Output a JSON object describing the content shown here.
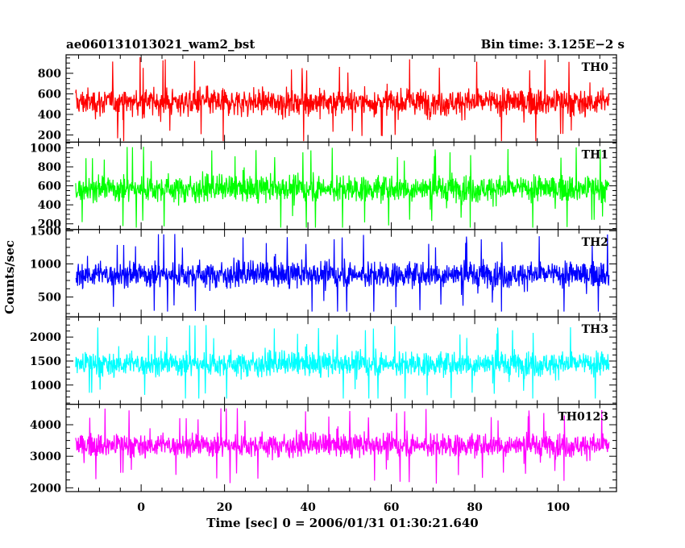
{
  "chart_data": {
    "type": "line",
    "title": "ae060131013021_wam2_bst",
    "subtitle": "Bin time: 3.125E−2 s",
    "xlabel": "Time [sec] 0 = 2006/01/31 01:30:21.640",
    "ylabel": "Counts/sec",
    "xlim": [
      -18,
      114
    ],
    "x_range": [
      -15.7,
      112.2
    ],
    "xticks": [
      0,
      20,
      40,
      60,
      80,
      100
    ],
    "xtick_labels": [
      "0",
      "20",
      "40",
      "60",
      "80",
      "100"
    ],
    "grid": false,
    "panels": [
      {
        "name": "TH0",
        "color": "#ff0000",
        "ylim": [
          130,
          980
        ],
        "yticks": [
          200,
          400,
          600,
          800
        ],
        "ytick_labels": [
          "200",
          "400",
          "600",
          "800"
        ],
        "mean": 520,
        "spread": 170,
        "min": 140,
        "max": 980
      },
      {
        "name": "TH1",
        "color": "#00ff00",
        "ylim": [
          140,
          1060
        ],
        "yticks": [
          200,
          400,
          600,
          800,
          1000
        ],
        "ytick_labels": [
          "200",
          "400",
          "600",
          "800",
          "1000"
        ],
        "mean": 570,
        "spread": 180,
        "min": 160,
        "max": 1040
      },
      {
        "name": "TH2",
        "color": "#0000ff",
        "ylim": [
          200,
          1520
        ],
        "yticks": [
          500,
          1000,
          1500
        ],
        "ytick_labels": [
          "500",
          "1000",
          "1500"
        ],
        "mean": 840,
        "spread": 250,
        "min": 280,
        "max": 1500
      },
      {
        "name": "TH3",
        "color": "#00ffff",
        "ylim": [
          600,
          2420
        ],
        "yticks": [
          1000,
          1500,
          2000
        ],
        "ytick_labels": [
          "1000",
          "1500",
          "2000"
        ],
        "mean": 1440,
        "spread": 330,
        "min": 720,
        "max": 2350
      },
      {
        "name": "TH0123",
        "color": "#ff00ff",
        "ylim": [
          1880,
          4650
        ],
        "yticks": [
          2000,
          3000,
          4000
        ],
        "ytick_labels": [
          "2000",
          "3000",
          "4000"
        ],
        "mean": 3350,
        "spread": 480,
        "min": 1950,
        "max": 4600
      }
    ]
  }
}
